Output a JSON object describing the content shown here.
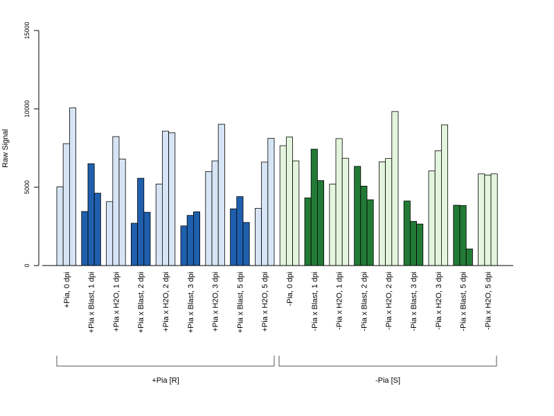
{
  "chart_data": {
    "type": "bar",
    "ylabel": "Raw Signal",
    "ylim": [
      0,
      15000
    ],
    "yticks": [
      0,
      5000,
      10000,
      15000
    ],
    "categories": [
      "+Pia, 0 dpi",
      "+Pia x Blast, 1 dpi",
      "+Pia x H2O, 1 dpi",
      "+Pia x Blast, 2 dpi",
      "+Pia x H2O, 2 dpi",
      "+Pia x Blast, 3 dpi",
      "+Pia x H2O, 3 dpi",
      "+Pia x Blast, 5 dpi",
      "+Pia x H2O, 5 dpi",
      "-Pia, 0 dpi",
      "-Pia x Blast, 1 dpi",
      "-Pia x H2O, 1 dpi",
      "-Pia x Blast, 2 dpi",
      "-Pia x H2O, 2 dpi",
      "-Pia x Blast, 3 dpi",
      "-Pia x H2O, 3 dpi",
      "-Pia x Blast, 5 dpi",
      "-Pia x H2O, 5 dpi"
    ],
    "replicates": [
      [
        5020,
        7780,
        10060
      ],
      [
        3450,
        6500,
        4620
      ],
      [
        4080,
        8230,
        6800
      ],
      [
        2700,
        5570,
        3400
      ],
      [
        5200,
        8580,
        8470
      ],
      [
        2530,
        3200,
        3430
      ],
      [
        6000,
        6680,
        9020
      ],
      [
        3620,
        4400,
        2750
      ],
      [
        3650,
        6600,
        8120
      ],
      [
        7650,
        8200,
        6680
      ],
      [
        4320,
        7430,
        5420
      ],
      [
        5200,
        8100,
        6850
      ],
      [
        6330,
        5070,
        4200
      ],
      [
        6620,
        6830,
        9830
      ],
      [
        4120,
        2820,
        2650
      ],
      [
        6040,
        7320,
        8980
      ],
      [
        3850,
        3830,
        1060
      ],
      [
        5850,
        5770,
        5850
      ]
    ],
    "bar_colors": [
      "#d6e4f5",
      "#1f5fae",
      "#d6e4f5",
      "#1f5fae",
      "#d6e4f5",
      "#1f5fae",
      "#d6e4f5",
      "#1f5fae",
      "#d6e4f5",
      "#e3f5dc",
      "#237a35",
      "#e3f5dc",
      "#237a35",
      "#e3f5dc",
      "#237a35",
      "#e3f5dc",
      "#237a35",
      "#e3f5dc"
    ],
    "groups": [
      {
        "label": "+Pia [R]",
        "from": 0,
        "to": 8
      },
      {
        "label": "-Pia [S]",
        "from": 9,
        "to": 17
      }
    ],
    "grid": false,
    "legend": "none"
  }
}
